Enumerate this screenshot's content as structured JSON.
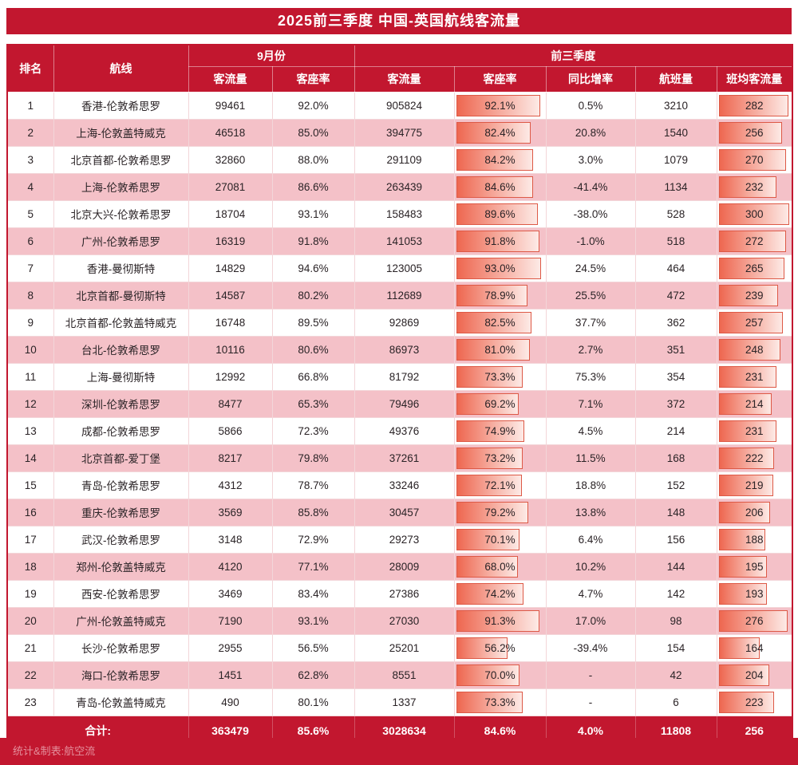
{
  "page": {
    "title": "2025前三季度 中国-英国航线客流量",
    "credit": "统计&制表:航空流"
  },
  "colors": {
    "primary": "#c2172f",
    "row_alt": "#f4c1c8",
    "bar_border": "#dd5946",
    "bar_start": "#ee6750",
    "bar_end": "#fdeae6"
  },
  "chart_data": {
    "type": "table",
    "title": "2025前三季度 中国-英国航线客流量",
    "headers": {
      "rank": "排名",
      "route": "航线",
      "september_group": "9月份",
      "q3_group": "前三季度",
      "sep_traffic": "客流量",
      "sep_load": "客座率",
      "q3_traffic": "客流量",
      "q3_load": "客座率",
      "yoy": "同比增率",
      "flights": "航班量",
      "avg": "班均客流量"
    },
    "bar_columns": [
      "q3_load",
      "avg"
    ],
    "bar_scale": {
      "load_max": 100,
      "avg_max": 300
    },
    "rows": [
      {
        "rank": 1,
        "route": "香港-伦敦希思罗",
        "sep_traffic": 99461,
        "sep_load": "92.0%",
        "q3_traffic": 905824,
        "q3_load": "92.1%",
        "yoy": "0.5%",
        "flights": 3210,
        "avg": 282
      },
      {
        "rank": 2,
        "route": "上海-伦敦盖特威克",
        "sep_traffic": 46518,
        "sep_load": "85.0%",
        "q3_traffic": 394775,
        "q3_load": "82.4%",
        "yoy": "20.8%",
        "flights": 1540,
        "avg": 256
      },
      {
        "rank": 3,
        "route": "北京首都-伦敦希思罗",
        "sep_traffic": 32860,
        "sep_load": "88.0%",
        "q3_traffic": 291109,
        "q3_load": "84.2%",
        "yoy": "3.0%",
        "flights": 1079,
        "avg": 270
      },
      {
        "rank": 4,
        "route": "上海-伦敦希思罗",
        "sep_traffic": 27081,
        "sep_load": "86.6%",
        "q3_traffic": 263439,
        "q3_load": "84.6%",
        "yoy": "-41.4%",
        "flights": 1134,
        "avg": 232
      },
      {
        "rank": 5,
        "route": "北京大兴-伦敦希思罗",
        "sep_traffic": 18704,
        "sep_load": "93.1%",
        "q3_traffic": 158483,
        "q3_load": "89.6%",
        "yoy": "-38.0%",
        "flights": 528,
        "avg": 300
      },
      {
        "rank": 6,
        "route": "广州-伦敦希思罗",
        "sep_traffic": 16319,
        "sep_load": "91.8%",
        "q3_traffic": 141053,
        "q3_load": "91.8%",
        "yoy": "-1.0%",
        "flights": 518,
        "avg": 272
      },
      {
        "rank": 7,
        "route": "香港-曼彻斯特",
        "sep_traffic": 14829,
        "sep_load": "94.6%",
        "q3_traffic": 123005,
        "q3_load": "93.0%",
        "yoy": "24.5%",
        "flights": 464,
        "avg": 265
      },
      {
        "rank": 8,
        "route": "北京首都-曼彻斯特",
        "sep_traffic": 14587,
        "sep_load": "80.2%",
        "q3_traffic": 112689,
        "q3_load": "78.9%",
        "yoy": "25.5%",
        "flights": 472,
        "avg": 239
      },
      {
        "rank": 9,
        "route": "北京首都-伦敦盖特威克",
        "sep_traffic": 16748,
        "sep_load": "89.5%",
        "q3_traffic": 92869,
        "q3_load": "82.5%",
        "yoy": "37.7%",
        "flights": 362,
        "avg": 257
      },
      {
        "rank": 10,
        "route": "台北-伦敦希思罗",
        "sep_traffic": 10116,
        "sep_load": "80.6%",
        "q3_traffic": 86973,
        "q3_load": "81.0%",
        "yoy": "2.7%",
        "flights": 351,
        "avg": 248
      },
      {
        "rank": 11,
        "route": "上海-曼彻斯特",
        "sep_traffic": 12992,
        "sep_load": "66.8%",
        "q3_traffic": 81792,
        "q3_load": "73.3%",
        "yoy": "75.3%",
        "flights": 354,
        "avg": 231
      },
      {
        "rank": 12,
        "route": "深圳-伦敦希思罗",
        "sep_traffic": 8477,
        "sep_load": "65.3%",
        "q3_traffic": 79496,
        "q3_load": "69.2%",
        "yoy": "7.1%",
        "flights": 372,
        "avg": 214
      },
      {
        "rank": 13,
        "route": "成都-伦敦希思罗",
        "sep_traffic": 5866,
        "sep_load": "72.3%",
        "q3_traffic": 49376,
        "q3_load": "74.9%",
        "yoy": "4.5%",
        "flights": 214,
        "avg": 231
      },
      {
        "rank": 14,
        "route": "北京首都-爱丁堡",
        "sep_traffic": 8217,
        "sep_load": "79.8%",
        "q3_traffic": 37261,
        "q3_load": "73.2%",
        "yoy": "11.5%",
        "flights": 168,
        "avg": 222
      },
      {
        "rank": 15,
        "route": "青岛-伦敦希思罗",
        "sep_traffic": 4312,
        "sep_load": "78.7%",
        "q3_traffic": 33246,
        "q3_load": "72.1%",
        "yoy": "18.8%",
        "flights": 152,
        "avg": 219
      },
      {
        "rank": 16,
        "route": "重庆-伦敦希思罗",
        "sep_traffic": 3569,
        "sep_load": "85.8%",
        "q3_traffic": 30457,
        "q3_load": "79.2%",
        "yoy": "13.8%",
        "flights": 148,
        "avg": 206
      },
      {
        "rank": 17,
        "route": "武汉-伦敦希思罗",
        "sep_traffic": 3148,
        "sep_load": "72.9%",
        "q3_traffic": 29273,
        "q3_load": "70.1%",
        "yoy": "6.4%",
        "flights": 156,
        "avg": 188
      },
      {
        "rank": 18,
        "route": "郑州-伦敦盖特威克",
        "sep_traffic": 4120,
        "sep_load": "77.1%",
        "q3_traffic": 28009,
        "q3_load": "68.0%",
        "yoy": "10.2%",
        "flights": 144,
        "avg": 195
      },
      {
        "rank": 19,
        "route": "西安-伦敦希思罗",
        "sep_traffic": 3469,
        "sep_load": "83.4%",
        "q3_traffic": 27386,
        "q3_load": "74.2%",
        "yoy": "4.7%",
        "flights": 142,
        "avg": 193
      },
      {
        "rank": 20,
        "route": "广州-伦敦盖特威克",
        "sep_traffic": 7190,
        "sep_load": "93.1%",
        "q3_traffic": 27030,
        "q3_load": "91.3%",
        "yoy": "17.0%",
        "flights": 98,
        "avg": 276
      },
      {
        "rank": 21,
        "route": "长沙-伦敦希思罗",
        "sep_traffic": 2955,
        "sep_load": "56.5%",
        "q3_traffic": 25201,
        "q3_load": "56.2%",
        "yoy": "-39.4%",
        "flights": 154,
        "avg": 164
      },
      {
        "rank": 22,
        "route": "海口-伦敦希思罗",
        "sep_traffic": 1451,
        "sep_load": "62.8%",
        "q3_traffic": 8551,
        "q3_load": "70.0%",
        "yoy": "-",
        "flights": 42,
        "avg": 204
      },
      {
        "rank": 23,
        "route": "青岛-伦敦盖特威克",
        "sep_traffic": 490,
        "sep_load": "80.1%",
        "q3_traffic": 1337,
        "q3_load": "73.3%",
        "yoy": "-",
        "flights": 6,
        "avg": 223
      }
    ],
    "totals": {
      "label": "合计:",
      "sep_traffic": 363479,
      "sep_load": "85.6%",
      "q3_traffic": 3028634,
      "q3_load": "84.6%",
      "yoy": "4.0%",
      "flights": 11808,
      "avg": 256
    }
  }
}
